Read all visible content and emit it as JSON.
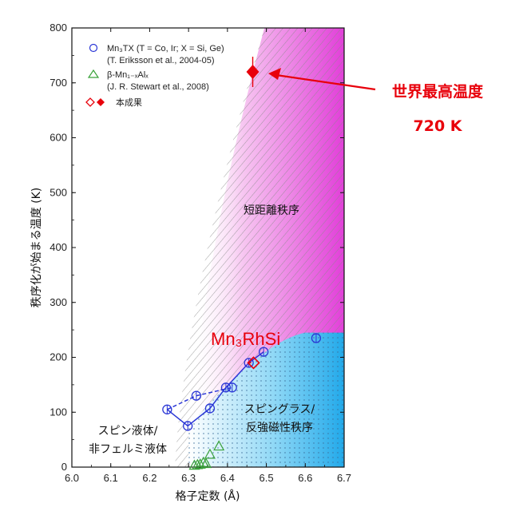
{
  "chart_data": {
    "type": "scatter",
    "xlabel": "格子定数 (Å)",
    "ylabel": "秩序化が始まる温度 (K)",
    "xlim": [
      6.0,
      6.7
    ],
    "ylim": [
      0,
      800
    ],
    "xticks": [
      "6.0",
      "6.1",
      "6.2",
      "6.3",
      "6.4",
      "6.5",
      "6.6",
      "6.7"
    ],
    "yticks": [
      "0",
      "100",
      "200",
      "300",
      "400",
      "500",
      "600",
      "700",
      "800"
    ],
    "legend": [
      {
        "marker": "blue-circle-icon",
        "label": "Mn₃TX (T = Co, Ir; X = Si, Ge)",
        "sub": "(T. Eriksson et al., 2004-05)"
      },
      {
        "marker": "green-triangle-icon",
        "label": "β-Mn₁₋ₓAlₓ",
        "sub": "(J. R. Stewart et al., 2008)"
      },
      {
        "marker": "red-diamond-icons",
        "label": "本成果",
        "sub": ""
      }
    ],
    "series": [
      {
        "name": "Mn₃TX (T = Co, Ir; X = Si, Ge)",
        "color": "#2a36d6",
        "marker": "circle",
        "points": [
          [
            6.245,
            105
          ],
          [
            6.298,
            75
          ],
          [
            6.355,
            107
          ],
          [
            6.396,
            145
          ],
          [
            6.412,
            145
          ],
          [
            6.455,
            190
          ],
          [
            6.493,
            210
          ],
          [
            6.628,
            235
          ],
          [
            6.32,
            130
          ]
        ],
        "solid_path": [
          [
            6.298,
            75
          ],
          [
            6.355,
            107
          ],
          [
            6.396,
            145
          ],
          [
            6.455,
            190
          ],
          [
            6.493,
            210
          ]
        ],
        "solid_path2": [
          [
            6.245,
            105
          ],
          [
            6.298,
            75
          ]
        ],
        "dashed_path": [
          [
            6.245,
            105
          ],
          [
            6.32,
            130
          ],
          [
            6.412,
            145
          ]
        ]
      },
      {
        "name": "β-Mn₁₋ₓAlₓ",
        "color": "#3aa23a",
        "marker": "triangle",
        "points": [
          [
            6.315,
            2
          ],
          [
            6.323,
            3
          ],
          [
            6.33,
            4
          ],
          [
            6.338,
            7
          ],
          [
            6.345,
            5
          ],
          [
            6.355,
            22
          ],
          [
            6.378,
            37
          ]
        ]
      },
      {
        "name": "本成果",
        "color": "#e8000b",
        "marker": "diamond",
        "points": [
          [
            6.467,
            190
          ],
          [
            6.465,
            720
          ]
        ]
      }
    ],
    "regions": {
      "short_range_label": "短距離秩序",
      "spin_glass_label_1": "スピングラス/",
      "spin_glass_label_2": "反強磁性秩序",
      "spin_liquid_label_1": "スピン液体/",
      "spin_liquid_label_2": "非フェルミ液体"
    },
    "highlight_label": "Mn₃RhSi",
    "callout_line1": "世界最高温度",
    "callout_line2": "720 K"
  }
}
